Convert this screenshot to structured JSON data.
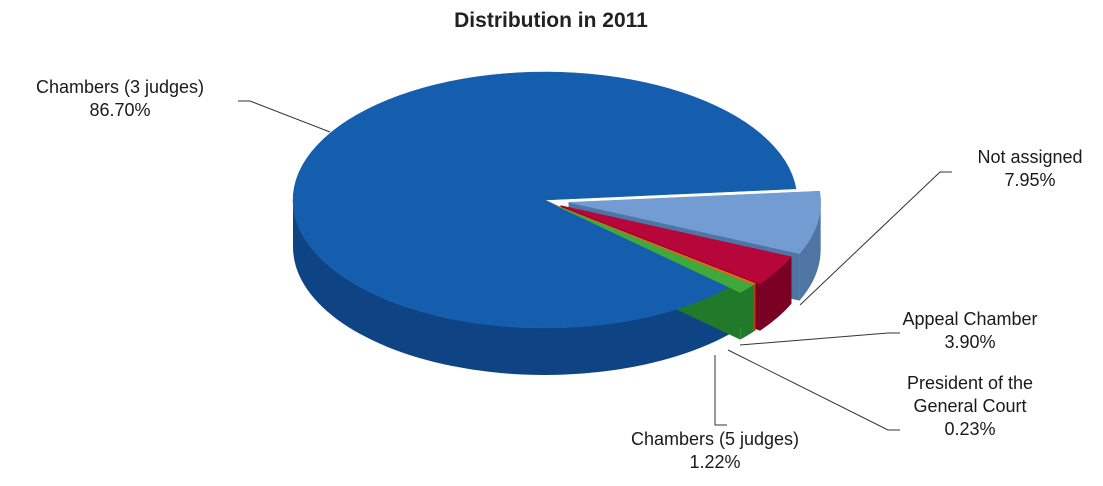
{
  "chart_data": {
    "type": "pie",
    "style": "3d-exploded",
    "title": "Distribution in 2011",
    "slices": [
      {
        "name": "Chambers (3 judges)",
        "name_lines": [
          "Chambers (3 judges)"
        ],
        "value": 86.7,
        "value_label": "86.70%",
        "color": "#155EAE",
        "side_color": "#0E4483"
      },
      {
        "name": "Not assigned",
        "name_lines": [
          "Not assigned"
        ],
        "value": 7.95,
        "value_label": "7.95%",
        "color": "#729CD2",
        "side_color": "#4F75A5"
      },
      {
        "name": "Appeal Chamber",
        "name_lines": [
          "Appeal Chamber"
        ],
        "value": 3.9,
        "value_label": "3.90%",
        "color": "#B7063A",
        "side_color": "#7A0024"
      },
      {
        "name": "President of the General Court",
        "name_lines": [
          "President of the",
          "General Court"
        ],
        "value": 0.23,
        "value_label": "0.23%",
        "color": "#E8641C",
        "side_color": "#A84210"
      },
      {
        "name": "Chambers (5 judges)",
        "name_lines": [
          "Chambers (5 judges)"
        ],
        "value": 1.22,
        "value_label": "1.22%",
        "color": "#3FAA3C",
        "side_color": "#217A2A"
      }
    ]
  }
}
